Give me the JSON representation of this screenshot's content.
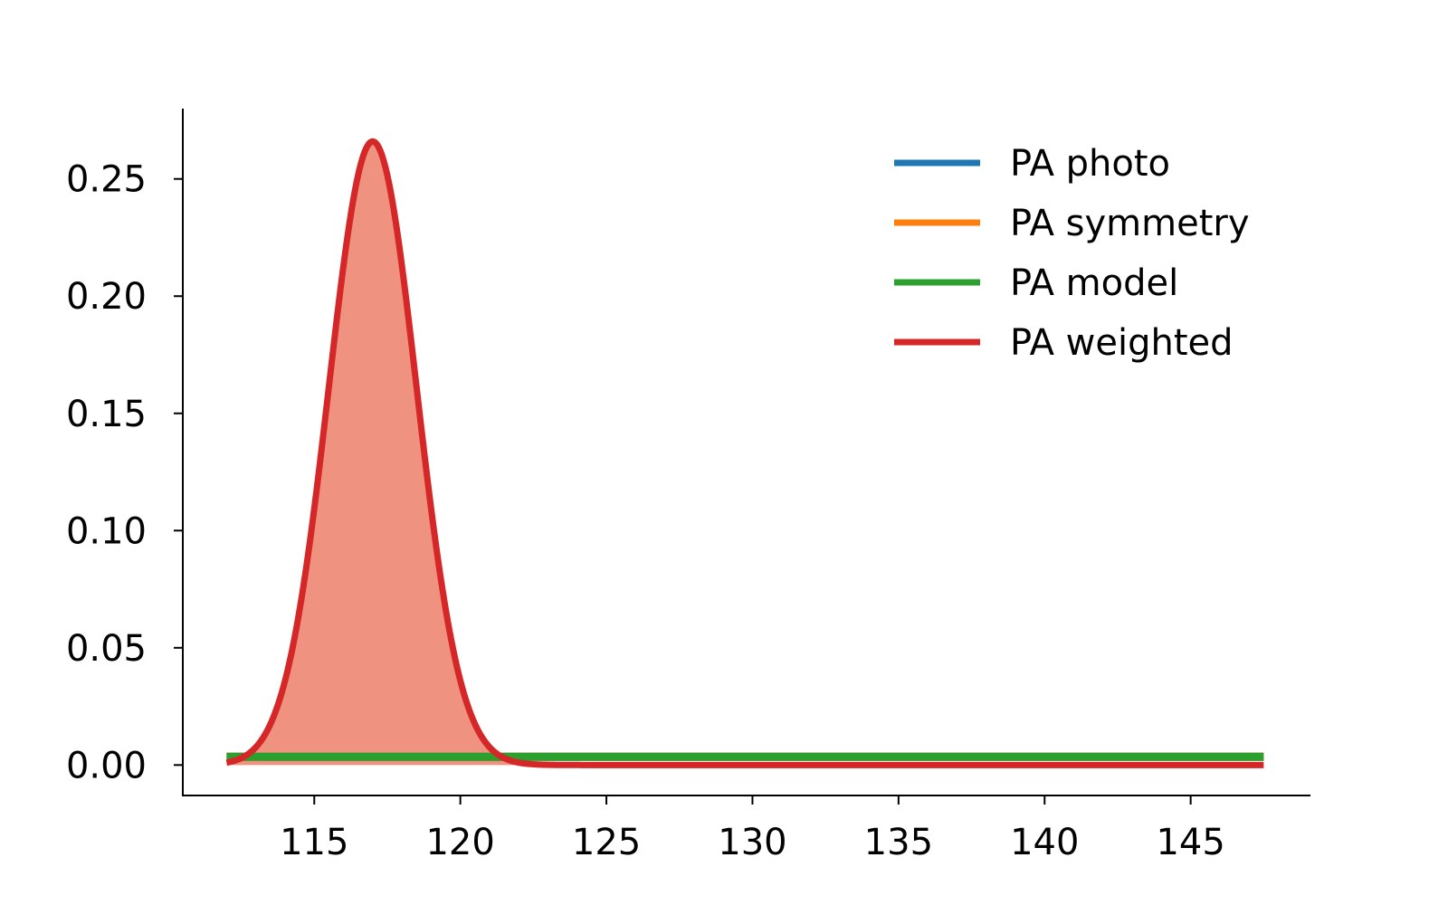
{
  "chart_data": {
    "type": "line",
    "title": "",
    "xlabel": "",
    "ylabel": "",
    "xlim": [
      110.5,
      149.1
    ],
    "ylim": [
      -0.013,
      0.28
    ],
    "grid": false,
    "legend_position": "top-right",
    "x_ticks": [
      115,
      120,
      125,
      130,
      135,
      140,
      145
    ],
    "x_tick_labels": [
      "115",
      "120",
      "125",
      "130",
      "135",
      "140",
      "145"
    ],
    "y_ticks": [
      0.0,
      0.05,
      0.1,
      0.15,
      0.2,
      0.25
    ],
    "y_tick_labels": [
      "0.00",
      "0.05",
      "0.10",
      "0.15",
      "0.20",
      "0.25"
    ],
    "series": [
      {
        "name": "PA photo",
        "color": "#1f77b4",
        "shape": "constant",
        "value": 0.0035,
        "x_range": [
          112,
          147.5
        ]
      },
      {
        "name": "PA symmetry",
        "color": "#ff7f0e",
        "shape": "constant",
        "value": 0.0035,
        "x_range": [
          112,
          147.5
        ]
      },
      {
        "name": "PA model",
        "color": "#2ca02c",
        "shape": "constant",
        "value": 0.0035,
        "x_range": [
          112,
          147.5
        ]
      },
      {
        "name": "PA weighted",
        "color": "#d62728",
        "fill_color": "#ef9380",
        "shape": "gaussian",
        "mean": 117.0,
        "sigma": 1.5,
        "peak": 0.266,
        "x_range": [
          112,
          147.5
        ]
      }
    ]
  }
}
